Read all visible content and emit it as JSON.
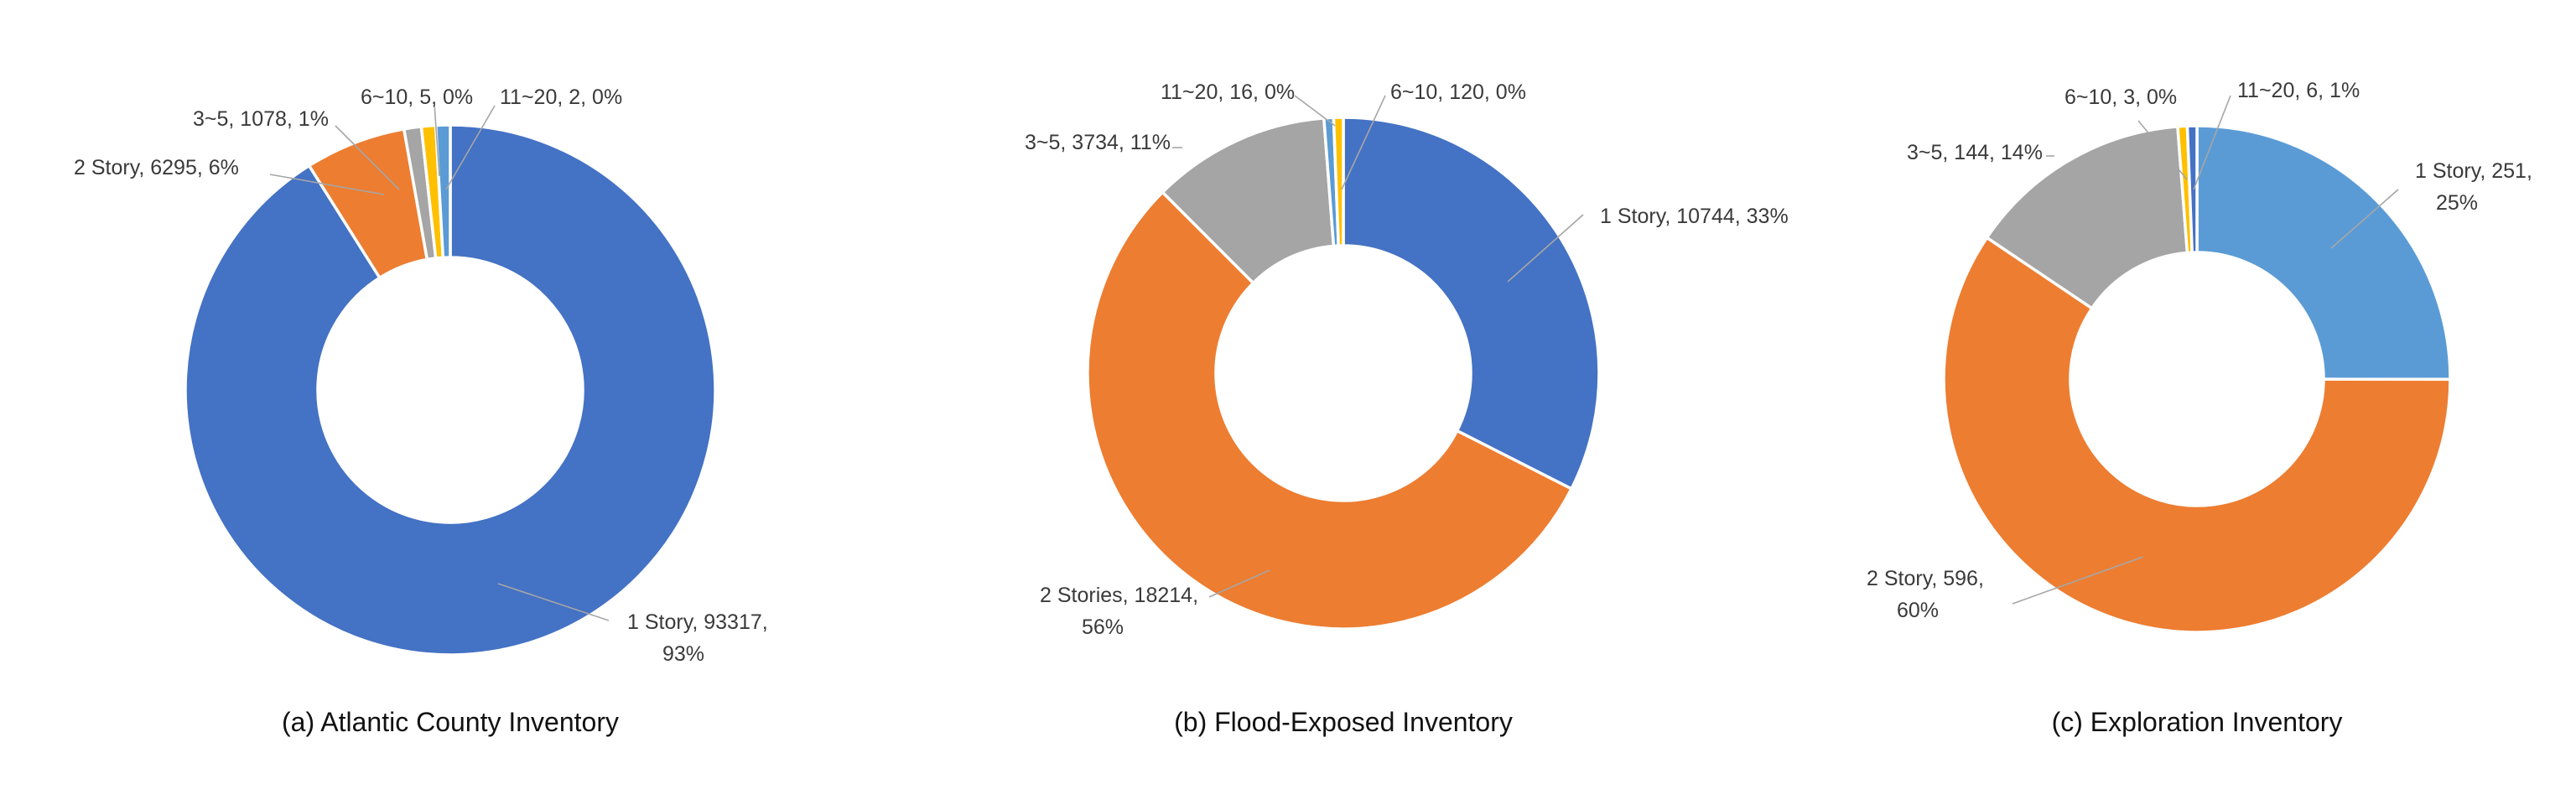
{
  "chart_data": [
    {
      "type": "pie",
      "style": "donut",
      "caption": "(a) Atlantic County Inventory",
      "colors": [
        "#4472C4",
        "#ED7D31",
        "#A5A5A5",
        "#FFC000",
        "#5B9BD5"
      ],
      "slices": [
        {
          "category": "1 Story",
          "value": 93317,
          "percent": "93%",
          "label_lines": [
            "1 Story, 93317,",
            "93%"
          ],
          "color": "#4472C4"
        },
        {
          "category": "2 Story",
          "value": 6295,
          "percent": "6%",
          "label_lines": [
            "2 Story, 6295, 6%"
          ],
          "color": "#ED7D31"
        },
        {
          "category": "3~5",
          "value": 1078,
          "percent": "1%",
          "label_lines": [
            "3~5, 1078, 1%"
          ],
          "color": "#A5A5A5"
        },
        {
          "category": "6~10",
          "value": 5,
          "percent": "0%",
          "label_lines": [
            "6~10, 5, 0%"
          ],
          "color": "#FFC000"
        },
        {
          "category": "11~20",
          "value": 2,
          "percent": "0%",
          "label_lines": [
            "11~20, 2, 0%"
          ],
          "color": "#5B9BD5"
        }
      ]
    },
    {
      "type": "pie",
      "style": "donut",
      "caption": "(b) Flood-Exposed Inventory",
      "colors": [
        "#4472C4",
        "#ED7D31",
        "#A5A5A5",
        "#FFC000",
        "#5B9BD5"
      ],
      "slices": [
        {
          "category": "1 Story",
          "value": 10744,
          "percent": "33%",
          "label_lines": [
            "1 Story, 10744, 33%"
          ],
          "color": "#4472C4"
        },
        {
          "category": "2 Stories",
          "value": 18214,
          "percent": "56%",
          "label_lines": [
            "2 Stories, 18214,",
            "56%"
          ],
          "color": "#ED7D31"
        },
        {
          "category": "3~5",
          "value": 3734,
          "percent": "11%",
          "label_lines": [
            "3~5, 3734, 11%"
          ],
          "color": "#A5A5A5"
        },
        {
          "category": "11~20",
          "value": 16,
          "percent": "0%",
          "label_lines": [
            "11~20, 16, 0%"
          ],
          "color": "#5B9BD5"
        },
        {
          "category": "6~10",
          "value": 120,
          "percent": "0%",
          "label_lines": [
            "6~10, 120, 0%"
          ],
          "color": "#FFC000"
        }
      ]
    },
    {
      "type": "pie",
      "style": "donut",
      "caption": "(c) Exploration Inventory",
      "colors": [
        "#5B9BD5",
        "#ED7D31",
        "#A5A5A5",
        "#FFC000",
        "#4472C4"
      ],
      "slices": [
        {
          "category": "1 Story",
          "value": 251,
          "percent": "25%",
          "label_lines": [
            "1 Story, 251,",
            "25%"
          ],
          "color": "#5B9BD5"
        },
        {
          "category": "2 Story",
          "value": 596,
          "percent": "60%",
          "label_lines": [
            "2 Story, 596,",
            "60%"
          ],
          "color": "#ED7D31"
        },
        {
          "category": "3~5",
          "value": 144,
          "percent": "14%",
          "label_lines": [
            "3~5, 144, 14%"
          ],
          "color": "#A5A5A5"
        },
        {
          "category": "6~10",
          "value": 3,
          "percent": "0%",
          "label_lines": [
            "6~10, 3, 0%"
          ],
          "color": "#FFC000"
        },
        {
          "category": "11~20",
          "value": 6,
          "percent": "1%",
          "label_lines": [
            "11~20, 6, 1%"
          ],
          "color": "#4472C4"
        }
      ]
    }
  ]
}
